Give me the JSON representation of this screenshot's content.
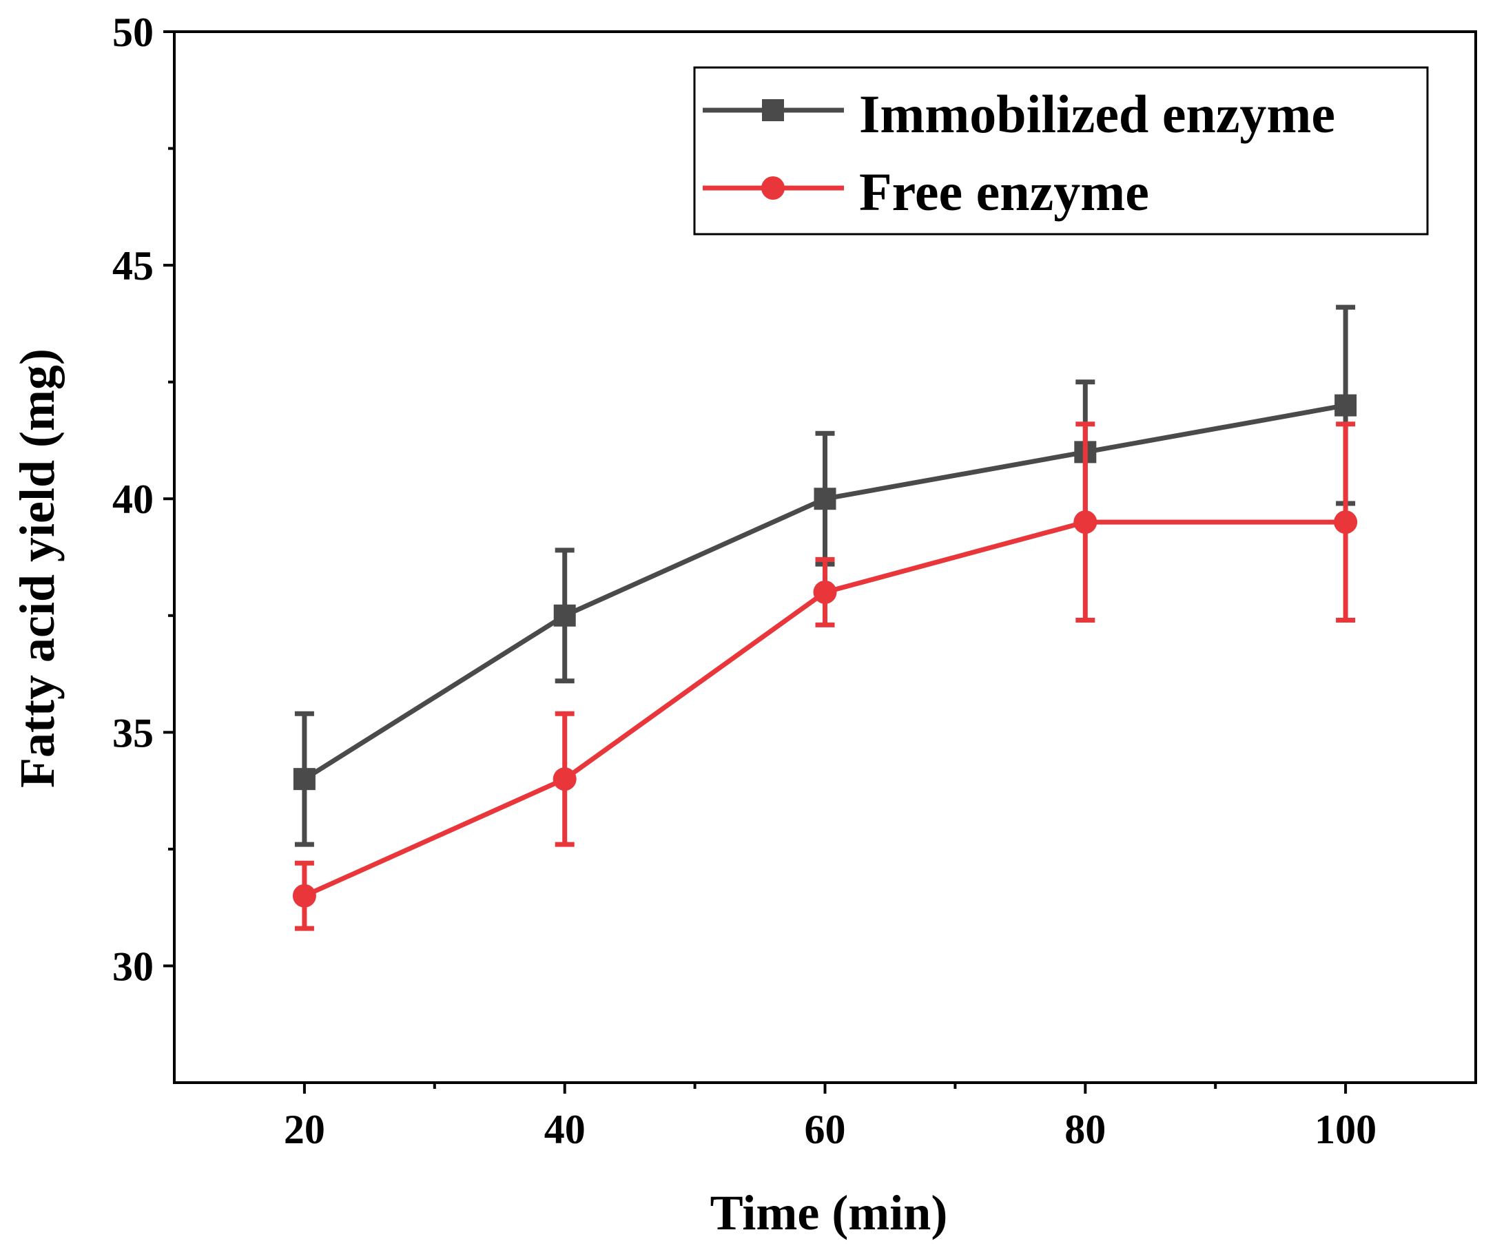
{
  "chart_data": {
    "type": "line",
    "title": "",
    "xlabel": "Time (min)",
    "ylabel": "Fatty acid yield (mg)",
    "xlim": [
      10,
      110
    ],
    "ylim": [
      27.5,
      50
    ],
    "xticks": [
      20,
      40,
      60,
      80,
      100
    ],
    "xtick_labels": [
      "20",
      "40",
      "60",
      "80",
      "100"
    ],
    "yticks": [
      30,
      35,
      40,
      45,
      50
    ],
    "ytick_labels": [
      "30",
      "35",
      "40",
      "45",
      "50"
    ],
    "grid": false,
    "legend_position": "top-right",
    "x": [
      20,
      40,
      60,
      80,
      100
    ],
    "series": [
      {
        "name": "Immobilized enzyme",
        "marker": "square",
        "color": "#4a4a4a",
        "values": [
          34.0,
          37.5,
          40.0,
          41.0,
          42.0
        ],
        "errors": [
          1.4,
          1.4,
          1.4,
          1.5,
          2.1
        ]
      },
      {
        "name": "Free enzyme",
        "marker": "circle",
        "color": "#e8363b",
        "values": [
          31.5,
          34.0,
          38.0,
          39.5,
          39.5
        ],
        "errors": [
          0.7,
          1.4,
          0.7,
          2.1,
          2.1
        ]
      }
    ]
  }
}
